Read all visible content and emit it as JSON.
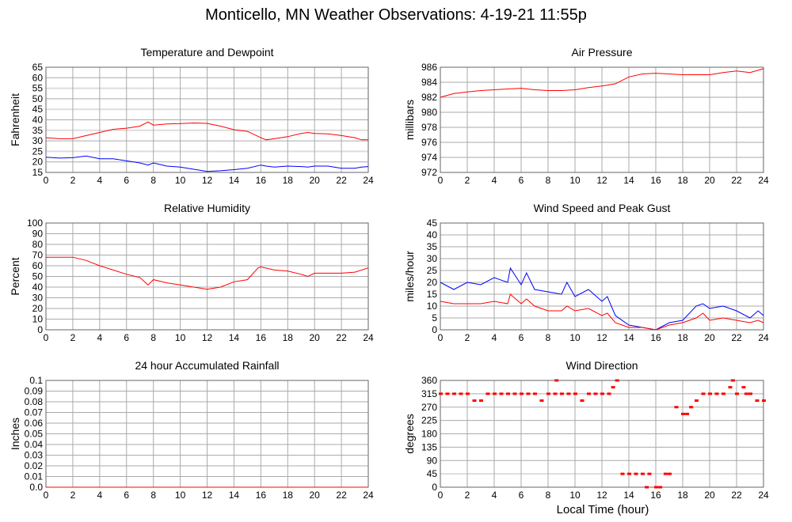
{
  "title": "Monticello, MN Weather Observations: 4-19-21 11:55p",
  "xlabel": "Local Time (hour)",
  "chart_data": [
    {
      "id": "temp",
      "type": "line",
      "title": "Temperature and Dewpoint",
      "ylabel": "Fahrenheit",
      "xlim": [
        0,
        24
      ],
      "ylim": [
        15,
        65
      ],
      "xticks": [
        0,
        2,
        4,
        6,
        8,
        10,
        12,
        14,
        16,
        18,
        20,
        22,
        24
      ],
      "yticks": [
        "15",
        "20",
        "25",
        "30",
        "35",
        "40",
        "45",
        "50",
        "55",
        "60",
        "65"
      ],
      "light_grid": [
        25,
        35,
        45,
        55
      ],
      "x": [
        0,
        1,
        2,
        3,
        4,
        5,
        6,
        7,
        7.6,
        8,
        9,
        10,
        11,
        12,
        13,
        14,
        15,
        16,
        16.4,
        17,
        18,
        19,
        19.5,
        20,
        21,
        22,
        23,
        23.5,
        24
      ],
      "series": [
        {
          "name": "Temperature",
          "color": "#ff0000",
          "values": [
            31.5,
            31,
            31,
            32.5,
            34,
            35.5,
            36,
            37,
            39,
            37.5,
            38,
            38.2,
            38.5,
            38.3,
            37,
            35.3,
            34.5,
            31.5,
            30.5,
            31,
            32,
            33.5,
            34,
            33.5,
            33.3,
            32.5,
            31.5,
            30.5,
            30.5
          ]
        },
        {
          "name": "Dewpoint",
          "color": "#0000ff",
          "values": [
            22.2,
            21.8,
            22,
            22.8,
            21.5,
            21.5,
            20.5,
            19.5,
            18.5,
            19.5,
            18,
            17.5,
            16.5,
            15.5,
            15.8,
            16.3,
            17,
            18.5,
            18,
            17.5,
            18,
            17.8,
            17.5,
            18,
            18,
            17,
            17,
            17.5,
            17.8
          ]
        }
      ]
    },
    {
      "id": "pressure",
      "type": "line",
      "title": "Air Pressure",
      "ylabel": "millibars",
      "xlim": [
        0,
        24
      ],
      "ylim": [
        972,
        986
      ],
      "xticks": [
        0,
        2,
        4,
        6,
        8,
        10,
        12,
        14,
        16,
        18,
        20,
        22,
        24
      ],
      "yticks": [
        "972",
        "974",
        "976",
        "978",
        "980",
        "982",
        "984",
        "986"
      ],
      "light_grid": [],
      "x": [
        0,
        1,
        2,
        3,
        4,
        5,
        6,
        7,
        8,
        9,
        10,
        11,
        12,
        13,
        14,
        15,
        16,
        17,
        18,
        19,
        20,
        21,
        22,
        23,
        24
      ],
      "series": [
        {
          "name": "Pressure",
          "color": "#ff0000",
          "values": [
            982,
            982.5,
            982.7,
            982.9,
            983,
            983.1,
            983.2,
            983,
            982.9,
            982.9,
            983,
            983.3,
            983.5,
            983.8,
            984.7,
            985.1,
            985.2,
            985.1,
            985,
            985,
            985,
            985.3,
            985.5,
            985.3,
            985.8
          ]
        }
      ]
    },
    {
      "id": "rh",
      "type": "line",
      "title": "Relative Humidity",
      "ylabel": "Percent",
      "xlim": [
        0,
        24
      ],
      "ylim": [
        0,
        100
      ],
      "xticks": [
        0,
        2,
        4,
        6,
        8,
        10,
        12,
        14,
        16,
        18,
        20,
        22,
        24
      ],
      "yticks": [
        "0",
        "10",
        "20",
        "30",
        "40",
        "50",
        "60",
        "70",
        "80",
        "90",
        "100"
      ],
      "light_grid": [],
      "x": [
        0,
        1,
        2,
        3,
        4,
        5,
        6,
        7,
        7.6,
        8,
        9,
        10,
        11,
        12,
        13,
        14,
        15,
        15.8,
        16,
        17,
        18,
        19,
        19.5,
        20,
        21,
        22,
        23,
        24
      ],
      "series": [
        {
          "name": "Relative Humidity",
          "color": "#ff0000",
          "values": [
            68,
            68,
            68,
            65,
            60,
            56,
            52,
            49,
            42,
            47,
            44,
            42,
            40,
            38,
            40,
            45,
            47,
            58,
            59,
            56,
            55,
            52,
            50,
            53,
            53,
            53,
            54,
            58
          ]
        }
      ]
    },
    {
      "id": "wind",
      "type": "line",
      "title": "Wind Speed and Peak Gust",
      "ylabel": "miles/hour",
      "xlim": [
        0,
        24
      ],
      "ylim": [
        0,
        45
      ],
      "xticks": [
        0,
        2,
        4,
        6,
        8,
        10,
        12,
        14,
        16,
        18,
        20,
        22,
        24
      ],
      "yticks": [
        "0",
        "5",
        "10",
        "15",
        "20",
        "25",
        "30",
        "35",
        "40",
        "45"
      ],
      "light_grid": [],
      "x": [
        0,
        1,
        2,
        3,
        4,
        5,
        5.2,
        6,
        6.4,
        7,
        8,
        9,
        9.4,
        10,
        11,
        12,
        12.4,
        13,
        14,
        15,
        16,
        17,
        18,
        19,
        19.5,
        20,
        21,
        22,
        23,
        23.6,
        24
      ],
      "series": [
        {
          "name": "Peak Gust",
          "color": "#0000ff",
          "values": [
            20,
            17,
            20,
            19,
            22,
            20,
            26,
            19,
            24,
            17,
            16,
            15,
            20,
            14,
            17,
            12,
            14,
            6,
            2,
            1,
            0,
            3,
            4,
            10,
            11,
            9,
            10,
            8,
            5,
            8,
            6
          ]
        },
        {
          "name": "Wind Speed",
          "color": "#ff0000",
          "values": [
            12,
            11,
            11,
            11,
            12,
            11,
            15,
            11,
            13,
            10,
            8,
            8,
            10,
            8,
            9,
            6,
            7,
            3,
            1,
            1,
            0,
            2,
            3,
            5,
            7,
            4,
            5,
            4,
            3,
            4,
            3
          ]
        }
      ]
    },
    {
      "id": "rain",
      "type": "line",
      "title": "24 hour Accumulated Rainfall",
      "ylabel": "Inches",
      "xlim": [
        0,
        24
      ],
      "ylim": [
        0,
        0.1
      ],
      "xticks": [
        0,
        2,
        4,
        6,
        8,
        10,
        12,
        14,
        16,
        18,
        20,
        22,
        24
      ],
      "yticks": [
        "0.0",
        "0.01",
        "0.02",
        "0.03",
        "0.04",
        "0.05",
        "0.06",
        "0.07",
        "0.08",
        "0.09",
        "0.1"
      ],
      "light_grid": [],
      "x": [
        0,
        24
      ],
      "series": [
        {
          "name": "Rainfall",
          "color": "#ff0000",
          "values": [
            0,
            0
          ]
        }
      ]
    },
    {
      "id": "dir",
      "type": "scatter",
      "title": "Wind Direction",
      "ylabel": "degrees",
      "xlim": [
        0,
        24
      ],
      "ylim": [
        0,
        360
      ],
      "xticks": [
        0,
        2,
        4,
        6,
        8,
        10,
        12,
        14,
        16,
        18,
        20,
        22,
        24
      ],
      "yticks": [
        "0",
        "45",
        "90",
        "135",
        "180",
        "225",
        "270",
        "315",
        "360"
      ],
      "light_grid": [
        45
      ],
      "x": [
        0,
        0.5,
        1,
        1.5,
        2,
        2.5,
        3,
        3.5,
        4,
        4.5,
        5,
        5.5,
        6,
        6.5,
        7,
        7.5,
        8,
        8.5,
        8.6,
        9,
        9.5,
        10,
        10.5,
        11,
        11.5,
        12,
        12.5,
        12.8,
        13.1,
        13.5,
        14,
        14.5,
        15,
        15.3,
        15.5,
        16,
        16.3,
        16.7,
        17,
        17.5,
        18,
        18.3,
        18.6,
        19,
        19.5,
        20,
        20.5,
        21,
        21.5,
        21.7,
        22,
        22.5,
        22.7,
        23,
        23.5,
        24
      ],
      "series": [
        {
          "name": "Direction",
          "color": "#ff0000",
          "values": [
            315,
            315,
            315,
            315,
            315,
            292,
            292,
            315,
            315,
            315,
            315,
            315,
            315,
            315,
            315,
            292,
            315,
            315,
            360,
            315,
            315,
            315,
            292,
            315,
            315,
            315,
            315,
            337,
            360,
            45,
            45,
            45,
            45,
            0,
            45,
            0,
            0,
            45,
            45,
            270,
            247,
            247,
            270,
            292,
            315,
            315,
            315,
            315,
            337,
            360,
            315,
            337,
            315,
            315,
            292,
            292
          ]
        }
      ]
    }
  ]
}
